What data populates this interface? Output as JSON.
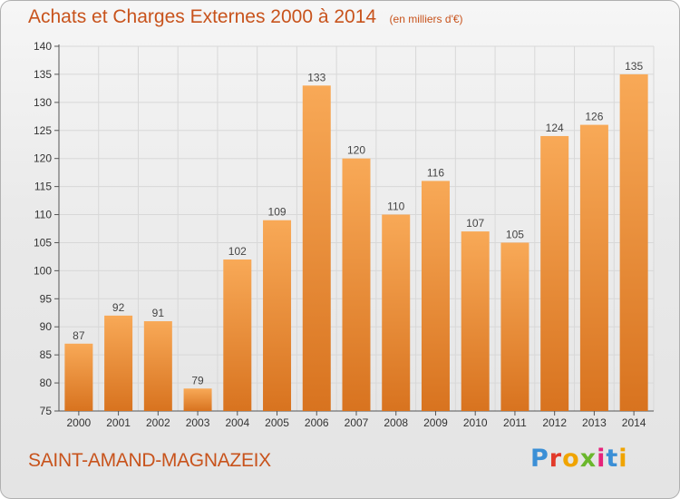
{
  "title": "Achats et Charges Externes 2000 à 2014",
  "subtitle": "(en milliers d'€)",
  "commune": "SAINT-AMAND-MAGNAZEIX",
  "logo": {
    "text": "Proxiti",
    "letter_colors": [
      "#3b8fd6",
      "#e23a2a",
      "#f0a400",
      "#6ab72c",
      "#e6237a",
      "#3b8fd6",
      "#f0a400"
    ]
  },
  "colors": {
    "title": "#c8531c",
    "bar_light": "#f8a957",
    "bar_dark": "#d8731f",
    "grid": "#d8d8d8"
  },
  "chart_data": {
    "type": "bar",
    "categories": [
      "2000",
      "2001",
      "2002",
      "2003",
      "2004",
      "2005",
      "2006",
      "2007",
      "2008",
      "2009",
      "2010",
      "2011",
      "2012",
      "2013",
      "2014"
    ],
    "values": [
      87,
      92,
      91,
      79,
      102,
      109,
      133,
      120,
      110,
      116,
      107,
      105,
      124,
      126,
      135
    ],
    "ylim": [
      75,
      140
    ],
    "yticks": [
      75,
      80,
      85,
      90,
      95,
      100,
      105,
      110,
      115,
      120,
      125,
      130,
      135,
      140
    ],
    "grid": true,
    "data_labels": true
  }
}
